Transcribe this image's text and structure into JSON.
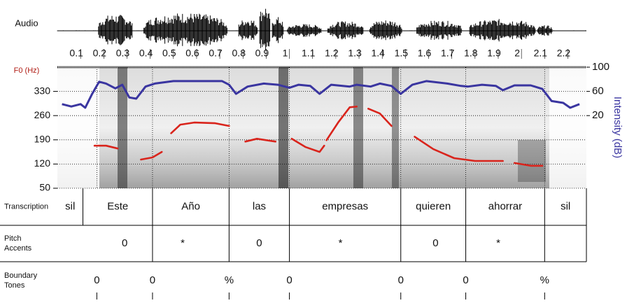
{
  "chart_data": {
    "type": "speech-analysis",
    "audio_label": "Audio",
    "xlim": [
      0,
      2.28
    ],
    "xticks": [
      0.1,
      0.2,
      0.3,
      0.4,
      0.5,
      0.6,
      0.7,
      0.8,
      0.9,
      1,
      1.1,
      1.2,
      1.3,
      1.4,
      1.5,
      1.6,
      1.7,
      1.8,
      1.9,
      2,
      2.1,
      2.2
    ],
    "ylabel": "F0 (Hz)",
    "ylim": [
      50,
      400
    ],
    "yticks": [
      50,
      120,
      190,
      260,
      330
    ],
    "y2label": "Intensity (dB)",
    "y2lim": [
      -100,
      100
    ],
    "y2ticks": [
      20,
      60,
      100
    ],
    "grid": true,
    "f0": {
      "color": "#d9241c",
      "x": [
        0.16,
        0.21,
        0.26,
        0.3,
        0.36,
        0.41,
        0.45,
        0.47,
        0.49,
        0.53,
        0.59,
        0.68,
        0.74,
        0.78,
        0.81,
        0.86,
        0.94,
        0.98,
        1.01,
        1.07,
        1.13,
        1.15,
        1.155,
        1.16,
        1.21,
        1.26,
        1.29,
        1.31,
        1.34,
        1.39,
        1.44,
        1.5,
        1.54,
        1.62,
        1.71,
        1.8,
        1.92,
        1.95,
        1.97,
        2.04,
        2.09
      ],
      "values": [
        173,
        173,
        165,
        null,
        133,
        139,
        155,
        null,
        209,
        234,
        240,
        238,
        230,
        null,
        185,
        193,
        185,
        null,
        193,
        169,
        155,
        173,
        null,
        189,
        240,
        284,
        286,
        null,
        280,
        266,
        230,
        null,
        199,
        163,
        137,
        129,
        129,
        null,
        123,
        115,
        115
      ]
    },
    "intensity": {
      "color": "#3a35a0",
      "axis": "y2",
      "x": [
        0.02,
        0.06,
        0.1,
        0.12,
        0.15,
        0.18,
        0.21,
        0.25,
        0.28,
        0.31,
        0.34,
        0.38,
        0.42,
        0.5,
        0.59,
        0.71,
        0.74,
        0.77,
        0.82,
        0.89,
        0.95,
        1.0,
        1.04,
        1.09,
        1.13,
        1.18,
        1.26,
        1.29,
        1.35,
        1.39,
        1.44,
        1.48,
        1.53,
        1.59,
        1.68,
        1.74,
        1.77,
        1.83,
        1.89,
        1.92,
        1.97,
        2.04,
        2.09,
        2.13,
        2.18,
        2.21,
        2.25
      ],
      "values": [
        39,
        35,
        39,
        33,
        56,
        76,
        73,
        65,
        71,
        50,
        48,
        68,
        73,
        77,
        77,
        77,
        71,
        56,
        68,
        73,
        71,
        66,
        71,
        69,
        56,
        71,
        68,
        71,
        68,
        73,
        69,
        56,
        71,
        77,
        73,
        69,
        68,
        71,
        69,
        62,
        70,
        70,
        64,
        44,
        41,
        33,
        39
      ]
    },
    "tiers": [
      {
        "label": [
          "Transcription"
        ],
        "boundaries": [
          0.11,
          0.41,
          0.74,
          1.0,
          1.48,
          1.76,
          2.1
        ],
        "intervals": [
          "sil",
          "Este",
          "Año",
          "las",
          "empresas",
          "quieren",
          "ahorrar",
          "sil"
        ]
      },
      {
        "label": [
          "Pitch",
          "Accents"
        ],
        "x": [
          0.29,
          0.54,
          0.87,
          1.22,
          1.63,
          1.9
        ],
        "marks": [
          "0",
          "*",
          "0",
          "*",
          "0",
          "*"
        ]
      },
      {
        "label": [
          "Boundary",
          "Tones"
        ],
        "x": [
          0.17,
          0.41,
          0.74,
          1.0,
          1.48,
          1.76,
          2.1
        ],
        "marks": [
          "0",
          "0",
          "%",
          "0",
          "0",
          "0",
          "%"
        ]
      }
    ]
  }
}
